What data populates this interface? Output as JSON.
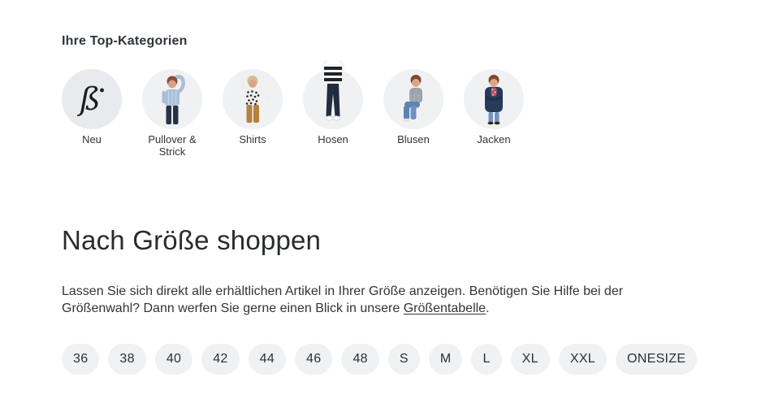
{
  "top_categories": {
    "title": "Ihre Top-Kategorien",
    "items": [
      {
        "label": "Neu",
        "icon": "brand-logo-icon"
      },
      {
        "label": "Pullover & Strick",
        "icon": "pullover-model-icon"
      },
      {
        "label": "Shirts",
        "icon": "shirts-model-icon"
      },
      {
        "label": "Hosen",
        "icon": "hosen-model-icon"
      },
      {
        "label": "Blusen",
        "icon": "blusen-model-icon"
      },
      {
        "label": "Jacken",
        "icon": "jacken-model-icon"
      }
    ]
  },
  "size_section": {
    "title": "Nach Größe shoppen",
    "description_before_link": "Lassen Sie sich direkt alle erhältlichen Artikel in Ihrer Größe anzeigen. Benötigen Sie Hilfe bei der Größenwahl? Dann werfen Sie gerne einen Blick in unsere ",
    "link_text": "Größentabelle",
    "description_after_link": ".",
    "sizes": [
      "36",
      "38",
      "40",
      "42",
      "44",
      "46",
      "48",
      "S",
      "M",
      "L",
      "XL",
      "XXL",
      "ONESIZE"
    ]
  },
  "colors": {
    "page_bg": "#ffffff",
    "pill_bg": "#f0f1f3",
    "logo_circle_bg": "#e8eaed",
    "photo_circle_bg": "#f0f1f2",
    "text": "#2f353b",
    "heading": "#272c31"
  }
}
